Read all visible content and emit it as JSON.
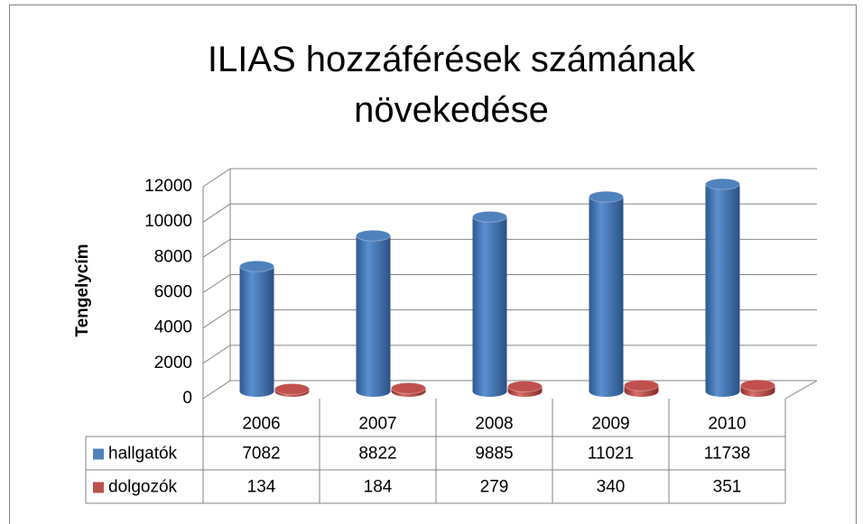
{
  "chart_data": {
    "type": "bar3d",
    "title": "ILIAS hozzáférések számának növekedése",
    "y_label": "Tengelycím",
    "categories": [
      "2006",
      "2007",
      "2008",
      "2009",
      "2010"
    ],
    "series": [
      {
        "name": "hallgatók",
        "color": "#4f81bd",
        "values": [
          7082,
          8822,
          9885,
          11021,
          11738
        ]
      },
      {
        "name": "dolgozók",
        "color": "#c0504d",
        "values": [
          134,
          184,
          279,
          340,
          351
        ]
      }
    ],
    "ylim": [
      0,
      12000
    ],
    "yticks": [
      0,
      2000,
      4000,
      6000,
      8000,
      10000,
      12000
    ],
    "grid": true,
    "data_table": true
  }
}
